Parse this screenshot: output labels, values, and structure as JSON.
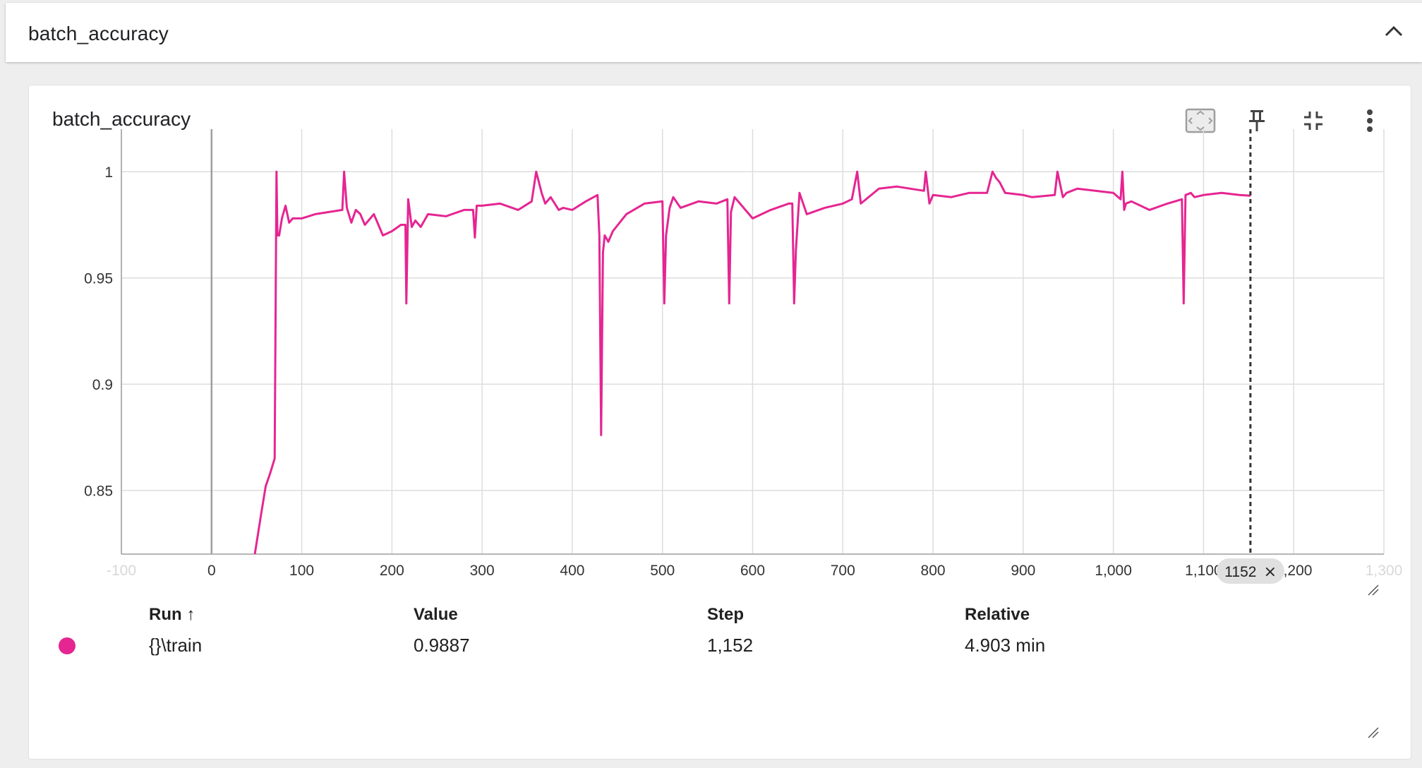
{
  "section": {
    "title": "batch_accuracy"
  },
  "card": {
    "title": "batch_accuracy"
  },
  "toolbar": {
    "fit_icon": "fit-to-data-icon",
    "pin_icon": "pin-icon",
    "collapse_icon": "collapse-card-icon",
    "menu_icon": "more-vert-icon"
  },
  "legend": {
    "headers": {
      "run": "Run",
      "value": "Value",
      "step": "Step",
      "relative": "Relative"
    },
    "rows": [
      {
        "run": "{}\\train",
        "value": "0.9887",
        "step": "1,152",
        "relative": "4.903 min",
        "color": "#e52592"
      }
    ]
  },
  "chart_data": {
    "type": "line",
    "title": "batch_accuracy",
    "xlabel": "",
    "ylabel": "",
    "xlim": [
      -100,
      1300
    ],
    "ylim": [
      0.82,
      1.02
    ],
    "x_ticks": [
      -100,
      0,
      100,
      200,
      300,
      400,
      500,
      600,
      700,
      800,
      900,
      1000,
      1100,
      1200,
      1300
    ],
    "x_tick_labels": [
      "-100",
      "0",
      "100",
      "200",
      "300",
      "400",
      "500",
      "600",
      "700",
      "800",
      "900",
      "1,000",
      "1,100",
      "1,200",
      "1,300"
    ],
    "y_ticks": [
      0.85,
      0.9,
      0.95,
      1
    ],
    "y_tick_labels": [
      "0.85",
      "0.9",
      "0.95",
      "1"
    ],
    "grid": true,
    "hover_step": 1152,
    "hover_step_label": "1152",
    "series": [
      {
        "name": "{}\\train",
        "color": "#e52592",
        "x": [
          48,
          55,
          60,
          65,
          70,
          72,
          73,
          75,
          78,
          82,
          86,
          90,
          100,
          115,
          130,
          145,
          147,
          150,
          155,
          160,
          165,
          170,
          180,
          190,
          200,
          210,
          215,
          216,
          218,
          222,
          226,
          232,
          240,
          260,
          280,
          290,
          292,
          294,
          300,
          320,
          340,
          355,
          360,
          366,
          370,
          376,
          385,
          390,
          400,
          415,
          428,
          430,
          432,
          434,
          436,
          440,
          445,
          460,
          480,
          500,
          502,
          504,
          508,
          512,
          520,
          540,
          560,
          572,
          574,
          576,
          580,
          590,
          600,
          620,
          640,
          644,
          646,
          648,
          652,
          660,
          680,
          700,
          710,
          716,
          720,
          740,
          760,
          790,
          792,
          796,
          800,
          820,
          840,
          860,
          866,
          870,
          874,
          880,
          900,
          910,
          935,
          938,
          944,
          948,
          960,
          1000,
          1008,
          1010,
          1012,
          1014,
          1020,
          1040,
          1060,
          1076,
          1078,
          1080,
          1086,
          1090,
          1100,
          1120,
          1140,
          1152
        ],
        "y": [
          0.82,
          0.839,
          0.852,
          0.858,
          0.865,
          1.0,
          0.97,
          0.97,
          0.978,
          0.984,
          0.976,
          0.978,
          0.978,
          0.98,
          0.981,
          0.982,
          1.0,
          0.983,
          0.976,
          0.982,
          0.98,
          0.975,
          0.98,
          0.97,
          0.972,
          0.975,
          0.975,
          0.938,
          0.987,
          0.974,
          0.977,
          0.974,
          0.98,
          0.979,
          0.982,
          0.982,
          0.969,
          0.984,
          0.984,
          0.985,
          0.982,
          0.986,
          1.0,
          0.99,
          0.985,
          0.988,
          0.982,
          0.983,
          0.982,
          0.986,
          0.989,
          0.97,
          0.876,
          0.962,
          0.97,
          0.967,
          0.972,
          0.98,
          0.985,
          0.986,
          0.938,
          0.97,
          0.983,
          0.988,
          0.983,
          0.986,
          0.985,
          0.987,
          0.938,
          0.981,
          0.988,
          0.983,
          0.978,
          0.982,
          0.985,
          0.985,
          0.938,
          0.963,
          0.99,
          0.98,
          0.983,
          0.985,
          0.987,
          1.0,
          0.985,
          0.992,
          0.993,
          0.991,
          1.0,
          0.985,
          0.989,
          0.988,
          0.99,
          0.99,
          1.0,
          0.997,
          0.995,
          0.99,
          0.989,
          0.988,
          0.989,
          1.0,
          0.988,
          0.99,
          0.992,
          0.99,
          0.987,
          1.0,
          0.982,
          0.985,
          0.986,
          0.982,
          0.985,
          0.987,
          0.938,
          0.989,
          0.99,
          0.988,
          0.989,
          0.99,
          0.989,
          0.9887
        ]
      }
    ]
  }
}
